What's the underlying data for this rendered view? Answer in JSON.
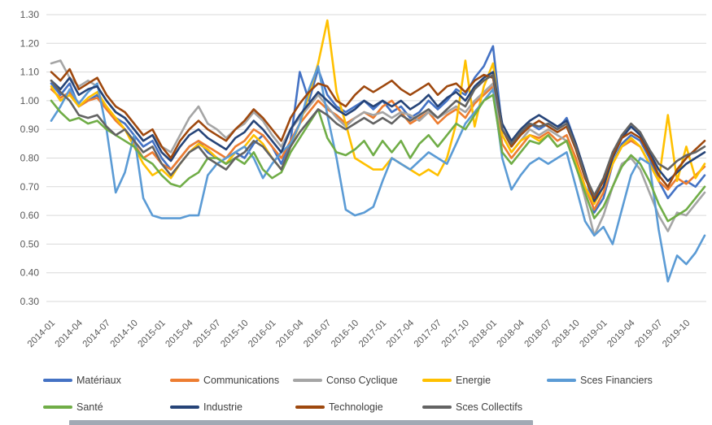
{
  "chart_data": {
    "type": "line",
    "title": "",
    "xlabel": "",
    "ylabel": "",
    "ylim": [
      0.3,
      1.3
    ],
    "y_step": 0.1,
    "grid": true,
    "legend_position": "bottom",
    "background_color": "#FFFFFF",
    "gridline_color": "#D9D9D9",
    "axis_label_color": "#595959",
    "y_ticks": [
      "1.30",
      "1.20",
      "1.10",
      "1.00",
      "0.90",
      "0.80",
      "0.70",
      "0.60",
      "0.50",
      "0.40",
      "0.30"
    ],
    "x_ticks": [
      "2014-01",
      "2014-04",
      "2014-07",
      "2014-10",
      "2015-01",
      "2015-04",
      "2015-07",
      "2015-10",
      "2016-01",
      "2016-04",
      "2016-07",
      "2016-10",
      "2017-01",
      "2017-04",
      "2017-07",
      "2017-10",
      "2018-01",
      "2018-04",
      "2018-07",
      "2018-10",
      "2019-01",
      "2019-04",
      "2019-07",
      "2019-10"
    ],
    "x": [
      "2014-01",
      "2014-02",
      "2014-03",
      "2014-04",
      "2014-05",
      "2014-06",
      "2014-07",
      "2014-08",
      "2014-09",
      "2014-10",
      "2014-11",
      "2014-12",
      "2015-01",
      "2015-02",
      "2015-03",
      "2015-04",
      "2015-05",
      "2015-06",
      "2015-07",
      "2015-08",
      "2015-09",
      "2015-10",
      "2015-11",
      "2015-12",
      "2016-01",
      "2016-02",
      "2016-03",
      "2016-04",
      "2016-05",
      "2016-06",
      "2016-07",
      "2016-08",
      "2016-09",
      "2016-10",
      "2016-11",
      "2016-12",
      "2017-01",
      "2017-02",
      "2017-03",
      "2017-04",
      "2017-05",
      "2017-06",
      "2017-07",
      "2017-08",
      "2017-09",
      "2017-10",
      "2017-11",
      "2017-12",
      "2018-01",
      "2018-02",
      "2018-03",
      "2018-04",
      "2018-05",
      "2018-06",
      "2018-07",
      "2018-08",
      "2018-09",
      "2018-10",
      "2018-11",
      "2018-12",
      "2019-01",
      "2019-02",
      "2019-03",
      "2019-04",
      "2019-05",
      "2019-06",
      "2019-07",
      "2019-08",
      "2019-09",
      "2019-10",
      "2019-11",
      "2019-12"
    ],
    "series": [
      {
        "name": "Matériaux",
        "color": "#4472C4",
        "values": [
          1.06,
          1.02,
          1.06,
          0.98,
          1.0,
          1.02,
          0.97,
          0.94,
          0.92,
          0.88,
          0.84,
          0.86,
          0.8,
          0.76,
          0.8,
          0.84,
          0.86,
          0.82,
          0.8,
          0.78,
          0.82,
          0.8,
          0.85,
          0.88,
          0.84,
          0.78,
          0.86,
          1.1,
          1.0,
          1.11,
          1.02,
          0.98,
          0.96,
          0.98,
          1.0,
          0.97,
          1.0,
          0.96,
          0.98,
          0.94,
          0.96,
          1.0,
          0.97,
          1.0,
          1.04,
          1.02,
          1.08,
          1.12,
          1.19,
          0.9,
          0.85,
          0.88,
          0.92,
          0.9,
          0.92,
          0.9,
          0.94,
          0.85,
          0.75,
          0.61,
          0.66,
          0.78,
          0.85,
          0.88,
          0.86,
          0.8,
          0.72,
          0.66,
          0.7,
          0.72,
          0.7,
          0.74
        ]
      },
      {
        "name": "Communications",
        "color": "#ED7D31",
        "values": [
          1.04,
          1.01,
          1.03,
          0.98,
          1.0,
          1.01,
          0.97,
          0.93,
          0.9,
          0.85,
          0.8,
          0.82,
          0.78,
          0.76,
          0.8,
          0.84,
          0.86,
          0.84,
          0.82,
          0.8,
          0.84,
          0.86,
          0.9,
          0.88,
          0.84,
          0.8,
          0.86,
          0.92,
          0.96,
          1.0,
          0.97,
          0.95,
          0.92,
          0.94,
          0.96,
          0.94,
          0.98,
          1.0,
          0.96,
          0.92,
          0.94,
          0.96,
          0.92,
          0.95,
          0.97,
          0.94,
          0.99,
          1.02,
          1.05,
          0.85,
          0.8,
          0.84,
          0.88,
          0.87,
          0.89,
          0.86,
          0.88,
          0.8,
          0.7,
          0.62,
          0.68,
          0.78,
          0.84,
          0.86,
          0.84,
          0.78,
          0.72,
          0.69,
          0.73,
          0.71,
          0.74,
          0.77
        ]
      },
      {
        "name": "Conso Cyclique",
        "color": "#A5A5A5",
        "values": [
          1.13,
          1.14,
          1.08,
          1.05,
          1.07,
          1.05,
          1.0,
          0.96,
          0.94,
          0.9,
          0.86,
          0.88,
          0.84,
          0.82,
          0.88,
          0.94,
          0.98,
          0.92,
          0.9,
          0.87,
          0.9,
          0.92,
          0.96,
          0.93,
          0.88,
          0.84,
          0.9,
          0.94,
          0.98,
          1.02,
          0.98,
          0.94,
          0.91,
          0.94,
          0.96,
          0.95,
          0.96,
          0.94,
          0.96,
          0.95,
          0.93,
          0.96,
          0.94,
          0.96,
          0.98,
          0.96,
          1.0,
          1.03,
          1.06,
          0.88,
          0.82,
          0.86,
          0.9,
          0.88,
          0.9,
          0.88,
          0.86,
          0.78,
          0.66,
          0.53,
          0.6,
          0.7,
          0.78,
          0.8,
          0.76,
          0.68,
          0.6,
          0.545,
          0.61,
          0.6,
          0.64,
          0.68
        ]
      },
      {
        "name": "Energie",
        "color": "#FFC000",
        "values": [
          1.05,
          1.0,
          1.02,
          0.98,
          1.01,
          1.03,
          0.98,
          0.94,
          0.9,
          0.84,
          0.78,
          0.74,
          0.76,
          0.73,
          0.78,
          0.82,
          0.85,
          0.83,
          0.8,
          0.78,
          0.82,
          0.84,
          0.88,
          0.85,
          0.8,
          0.76,
          0.84,
          0.92,
          1.02,
          1.13,
          1.28,
          1.03,
          0.92,
          0.8,
          0.78,
          0.76,
          0.76,
          0.8,
          0.78,
          0.76,
          0.74,
          0.76,
          0.74,
          0.8,
          0.92,
          1.14,
          0.91,
          1.05,
          1.13,
          0.88,
          0.82,
          0.86,
          0.88,
          0.86,
          0.88,
          0.84,
          0.86,
          0.78,
          0.7,
          0.64,
          0.7,
          0.78,
          0.84,
          0.87,
          0.84,
          0.78,
          0.72,
          0.95,
          0.72,
          0.84,
          0.73,
          0.78
        ]
      },
      {
        "name": "Sces Financiers",
        "color": "#5B9BD5",
        "values": [
          0.93,
          0.98,
          1.04,
          0.99,
          1.03,
          1.06,
          0.9,
          0.68,
          0.75,
          0.88,
          0.66,
          0.6,
          0.59,
          0.59,
          0.59,
          0.6,
          0.6,
          0.74,
          0.78,
          0.8,
          0.82,
          0.84,
          0.8,
          0.73,
          0.78,
          0.82,
          0.85,
          0.92,
          1.04,
          1.12,
          0.95,
          0.8,
          0.62,
          0.6,
          0.61,
          0.63,
          0.72,
          0.8,
          0.78,
          0.76,
          0.79,
          0.82,
          0.8,
          0.78,
          0.85,
          0.92,
          0.96,
          1.0,
          1.04,
          0.8,
          0.69,
          0.74,
          0.78,
          0.8,
          0.78,
          0.8,
          0.82,
          0.7,
          0.58,
          0.53,
          0.56,
          0.5,
          0.62,
          0.74,
          0.8,
          0.78,
          0.55,
          0.37,
          0.46,
          0.43,
          0.47,
          0.53
        ]
      },
      {
        "name": "Santé",
        "color": "#70AD47",
        "values": [
          1.0,
          0.96,
          0.93,
          0.94,
          0.92,
          0.93,
          0.9,
          0.88,
          0.86,
          0.84,
          0.8,
          0.78,
          0.74,
          0.71,
          0.7,
          0.73,
          0.75,
          0.8,
          0.8,
          0.78,
          0.8,
          0.78,
          0.82,
          0.76,
          0.73,
          0.75,
          0.82,
          0.87,
          0.92,
          0.97,
          0.87,
          0.82,
          0.81,
          0.83,
          0.86,
          0.81,
          0.86,
          0.82,
          0.86,
          0.8,
          0.85,
          0.88,
          0.84,
          0.88,
          0.92,
          0.9,
          0.95,
          1.0,
          1.02,
          0.82,
          0.78,
          0.82,
          0.86,
          0.85,
          0.88,
          0.84,
          0.86,
          0.77,
          0.68,
          0.59,
          0.63,
          0.7,
          0.77,
          0.81,
          0.78,
          0.72,
          0.64,
          0.58,
          0.6,
          0.62,
          0.66,
          0.7
        ]
      },
      {
        "name": "Industrie",
        "color": "#264478",
        "values": [
          1.07,
          1.04,
          1.08,
          1.02,
          1.04,
          1.05,
          1.0,
          0.96,
          0.94,
          0.9,
          0.86,
          0.88,
          0.82,
          0.79,
          0.84,
          0.88,
          0.9,
          0.87,
          0.85,
          0.83,
          0.87,
          0.89,
          0.93,
          0.9,
          0.86,
          0.82,
          0.9,
          0.95,
          0.99,
          1.03,
          1.0,
          0.97,
          0.95,
          0.97,
          1.0,
          0.98,
          1.0,
          0.98,
          1.0,
          0.97,
          0.99,
          1.02,
          0.98,
          1.01,
          1.03,
          1.0,
          1.05,
          1.08,
          1.1,
          0.92,
          0.86,
          0.9,
          0.93,
          0.95,
          0.93,
          0.91,
          0.93,
          0.85,
          0.75,
          0.65,
          0.7,
          0.8,
          0.87,
          0.91,
          0.88,
          0.82,
          0.76,
          0.72,
          0.75,
          0.78,
          0.8,
          0.82
        ]
      },
      {
        "name": "Technologie",
        "color": "#9E480E",
        "values": [
          1.1,
          1.07,
          1.11,
          1.04,
          1.06,
          1.08,
          1.02,
          0.98,
          0.96,
          0.92,
          0.88,
          0.9,
          0.84,
          0.8,
          0.86,
          0.9,
          0.93,
          0.9,
          0.88,
          0.86,
          0.9,
          0.93,
          0.97,
          0.94,
          0.9,
          0.86,
          0.94,
          0.99,
          1.03,
          1.06,
          1.05,
          1.0,
          0.98,
          1.02,
          1.05,
          1.03,
          1.05,
          1.07,
          1.04,
          1.02,
          1.04,
          1.06,
          1.02,
          1.05,
          1.06,
          1.03,
          1.07,
          1.09,
          1.08,
          0.9,
          0.84,
          0.88,
          0.91,
          0.93,
          0.91,
          0.89,
          0.91,
          0.83,
          0.73,
          0.66,
          0.72,
          0.81,
          0.87,
          0.89,
          0.87,
          0.81,
          0.74,
          0.7,
          0.76,
          0.8,
          0.83,
          0.86
        ]
      },
      {
        "name": "Sces Collectifs",
        "color": "#636363",
        "values": [
          1.07,
          1.03,
          1.0,
          0.95,
          0.94,
          0.95,
          0.91,
          0.88,
          0.9,
          0.86,
          0.82,
          0.84,
          0.78,
          0.74,
          0.78,
          0.82,
          0.84,
          0.8,
          0.78,
          0.76,
          0.8,
          0.82,
          0.86,
          0.84,
          0.8,
          0.76,
          0.84,
          0.89,
          0.93,
          0.97,
          0.95,
          0.92,
          0.9,
          0.92,
          0.94,
          0.92,
          0.94,
          0.92,
          0.95,
          0.93,
          0.95,
          0.97,
          0.94,
          0.97,
          1.0,
          0.98,
          1.04,
          1.07,
          1.09,
          0.9,
          0.85,
          0.89,
          0.92,
          0.91,
          0.92,
          0.9,
          0.92,
          0.84,
          0.74,
          0.67,
          0.73,
          0.82,
          0.88,
          0.92,
          0.89,
          0.83,
          0.78,
          0.76,
          0.79,
          0.81,
          0.82,
          0.84
        ]
      }
    ]
  },
  "legend": {
    "rows": [
      [
        "Matériaux",
        "Communications",
        "Conso Cyclique",
        "Energie",
        "Sces Financiers"
      ],
      [
        "Santé",
        "Industrie",
        "Technologie",
        "Sces Collectifs"
      ]
    ]
  }
}
